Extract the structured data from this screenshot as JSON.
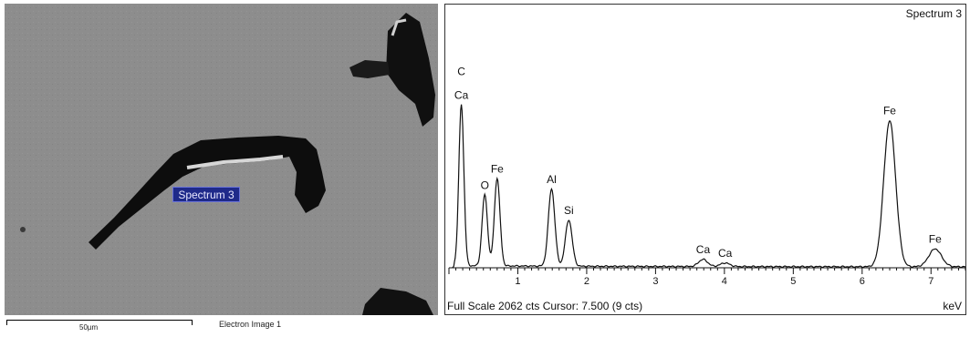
{
  "sem_image": {
    "spectrum_marker": "Spectrum 3",
    "scale_bar_label": "50µm",
    "caption": "Electron Image 1"
  },
  "eds_spectrum": {
    "title": "Spectrum 3",
    "status": "Full Scale 2062 cts Cursor: 7.500  (9 cts)",
    "x_unit": "keV"
  },
  "chart_data": {
    "type": "line",
    "title": "Spectrum 3",
    "xlabel": "keV",
    "ylabel": "",
    "xlim": [
      0,
      7.5
    ],
    "ylim": [
      0,
      2062
    ],
    "x_ticks": [
      "1",
      "2",
      "3",
      "4",
      "5",
      "6",
      "7"
    ],
    "grid": false,
    "series": [
      {
        "peaks": [
          {
            "label": "C",
            "energy": 0.18,
            "counts": 1360
          },
          {
            "label": "Ca",
            "energy": 0.18,
            "counts": 1360
          },
          {
            "label": "O",
            "energy": 0.52,
            "counts": 600
          },
          {
            "label": "Fe",
            "energy": 0.7,
            "counts": 740
          },
          {
            "label": "Al",
            "energy": 1.49,
            "counts": 650
          },
          {
            "label": "Si",
            "energy": 1.74,
            "counts": 390
          },
          {
            "label": "Ca",
            "energy": 3.69,
            "counts": 60
          },
          {
            "label": "Ca",
            "energy": 4.01,
            "counts": 30
          },
          {
            "label": "Fe",
            "energy": 6.4,
            "counts": 1230
          },
          {
            "label": "Fe",
            "energy": 7.06,
            "counts": 150
          }
        ]
      }
    ]
  }
}
